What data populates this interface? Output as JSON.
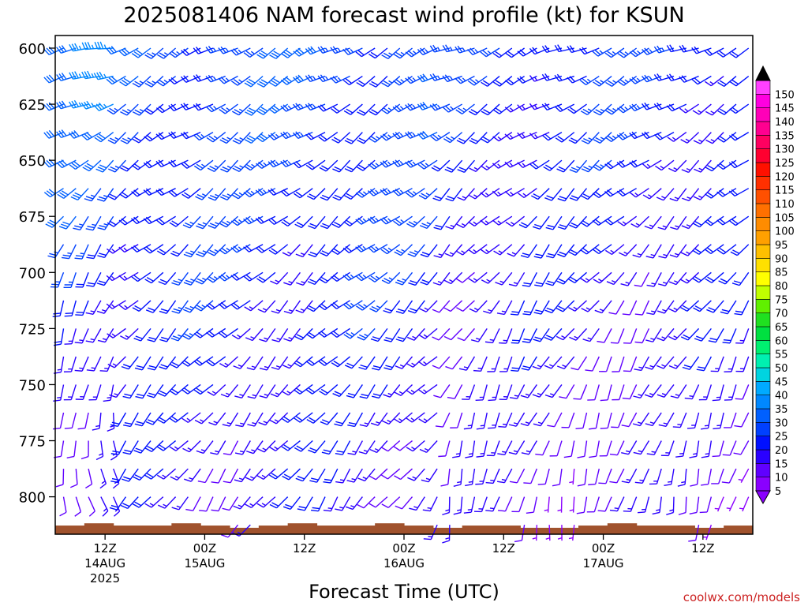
{
  "chart_data": {
    "type": "wind-barb profile",
    "title": "2025081406 NAM forecast wind profile (kt) for KSUN",
    "xlabel": "Forecast Time (UTC)",
    "ylabel": "",
    "credit": "coolwx.com/models",
    "y_reversed": true,
    "ylim": [
      813,
      595
    ],
    "y_ticks": [
      600,
      625,
      650,
      675,
      700,
      725,
      750,
      775,
      800
    ],
    "x_range_hours": [
      0,
      84
    ],
    "x_ticks": [
      {
        "hour": 6,
        "label": "12Z",
        "sub1": "14AUG",
        "sub2": "2025"
      },
      {
        "hour": 18,
        "label": "00Z",
        "sub1": "15AUG",
        "sub2": ""
      },
      {
        "hour": 30,
        "label": "12Z",
        "sub1": "",
        "sub2": ""
      },
      {
        "hour": 42,
        "label": "00Z",
        "sub1": "16AUG",
        "sub2": ""
      },
      {
        "hour": 54,
        "label": "12Z",
        "sub1": "",
        "sub2": ""
      },
      {
        "hour": 66,
        "label": "00Z",
        "sub1": "17AUG",
        "sub2": ""
      },
      {
        "hour": 78,
        "label": "12Z",
        "sub1": "",
        "sub2": ""
      }
    ],
    "levels_mb": [
      600,
      612.5,
      625,
      637.5,
      650,
      662.5,
      675,
      687.5,
      700,
      712.5,
      725,
      737.5,
      750,
      762.5,
      775,
      787.5,
      800,
      812.5
    ],
    "regimes": [
      {
        "name": "phase1",
        "hour_start": 0,
        "hour_end": 8,
        "upper_dir_deg": 255,
        "lower_dir_deg": 160,
        "upper_speed_kt": 32,
        "lower_speed_kt": 10
      },
      {
        "name": "phase2",
        "hour_start": 8,
        "hour_end": 46,
        "upper_dir_deg": 240,
        "lower_dir_deg": 215,
        "upper_speed_kt": 26,
        "lower_speed_kt": 14
      },
      {
        "name": "phase3",
        "hour_start": 47,
        "hour_end": 84,
        "upper_dir_deg": 245,
        "lower_dir_deg": 190,
        "upper_speed_kt": 22,
        "lower_speed_kt": 10
      }
    ],
    "terrain_pressure_mb": [
      810,
      809,
      810,
      810,
      809,
      810,
      811,
      810,
      809,
      810,
      810,
      809,
      810,
      811,
      810,
      810,
      811,
      811,
      810,
      809,
      810,
      810,
      811,
      810
    ],
    "colorbar": {
      "labels": [
        "5",
        "10",
        "15",
        "20",
        "25",
        "30",
        "35",
        "40",
        "45",
        "50",
        "55",
        "60",
        "65",
        "70",
        "75",
        "80",
        "85",
        "90",
        "95",
        "100",
        "105",
        "110",
        "115",
        "120",
        "125",
        "130",
        "135",
        "140",
        "145",
        "150"
      ],
      "colors": [
        "#8a00ff",
        "#6000ff",
        "#2a00ff",
        "#0010ff",
        "#0040ff",
        "#0060ff",
        "#0088ff",
        "#00aaff",
        "#00d4e0",
        "#00f0b0",
        "#00f070",
        "#00e040",
        "#20e020",
        "#60f000",
        "#c0ff00",
        "#ffff00",
        "#ffe000",
        "#ffc000",
        "#ffa000",
        "#ff8c00",
        "#ff7000",
        "#ff5000",
        "#ff3000",
        "#ff1000",
        "#ff0030",
        "#ff0060",
        "#ff0090",
        "#ff00b8",
        "#ff00e0",
        "#ff40ff"
      ]
    }
  }
}
